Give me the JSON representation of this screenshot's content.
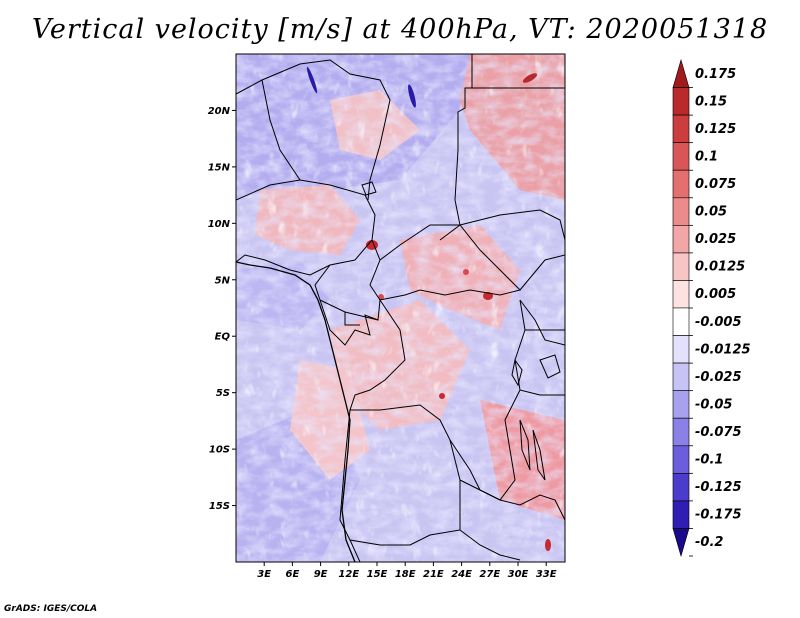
{
  "title": "Vertical velocity [m/s] at 400hPa, VT: 2020051318",
  "credit": "GrADS: IGES/COLA",
  "map": {
    "lat_labels": [
      "20N",
      "15N",
      "10N",
      "5N",
      "EQ",
      "5S",
      "10S",
      "15S"
    ],
    "lon_labels": [
      "3E",
      "6E",
      "9E",
      "12E",
      "15E",
      "18E",
      "21E",
      "24E",
      "27E",
      "30E",
      "33E"
    ],
    "lat_values": [
      20,
      15,
      10,
      5,
      0,
      -5,
      -10,
      -15
    ],
    "lon_values": [
      3,
      6,
      9,
      12,
      15,
      18,
      21,
      24,
      27,
      30,
      33
    ],
    "lat_range": [
      -20,
      25
    ],
    "lon_range": [
      0,
      35
    ]
  },
  "colorbar": {
    "labels": [
      "0.175",
      "0.15",
      "0.125",
      "0.1",
      "0.075",
      "0.05",
      "0.025",
      "0.0125",
      "0.005",
      "-0.005",
      "-0.0125",
      "-0.025",
      "-0.05",
      "-0.075",
      "-0.1",
      "-0.125",
      "-0.175",
      "-0.2"
    ],
    "colors": [
      "#a31a1a",
      "#bb2a2a",
      "#cc3e3e",
      "#da5555",
      "#e46f6f",
      "#ec8b8b",
      "#f3a6a6",
      "#f8c5c5",
      "#fde2e2",
      "#ffffff",
      "#e2e0fa",
      "#c7c3f5",
      "#a8a2ee",
      "#8a80e6",
      "#6a5edc",
      "#4a3ccc",
      "#2e1eb4",
      "#1a0a8c"
    ]
  }
}
